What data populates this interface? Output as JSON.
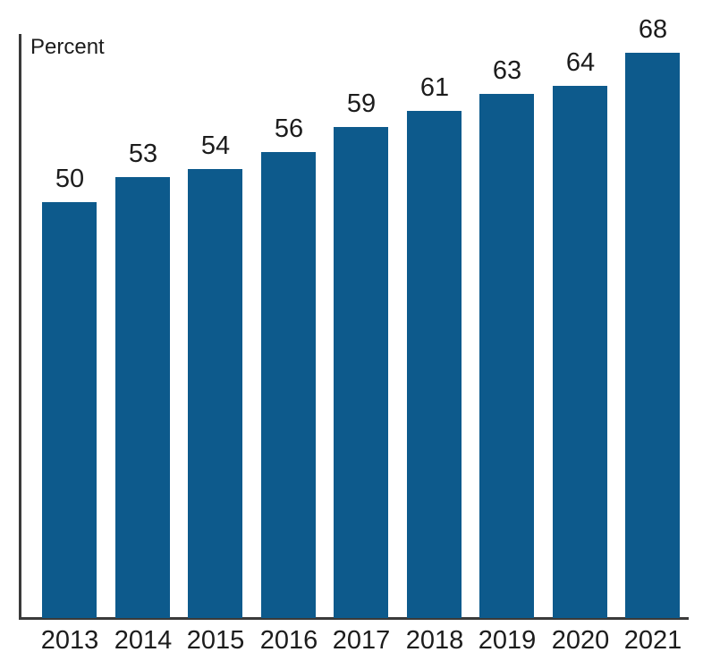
{
  "chart": {
    "unit_label": "Percent"
  },
  "chart_data": {
    "type": "bar",
    "title": "",
    "xlabel": "",
    "ylabel": "Percent",
    "categories": [
      "2013",
      "2014",
      "2015",
      "2016",
      "2017",
      "2018",
      "2019",
      "2020",
      "2021"
    ],
    "values": [
      50,
      53,
      54,
      56,
      59,
      61,
      63,
      64,
      68
    ],
    "data_labels_shown": true,
    "ylim": [
      0,
      70
    ],
    "grid": false,
    "legend": false,
    "bar_color": "#0d5a8c",
    "axis_color": "#3a3a3a",
    "text_color": "#1c1c1c"
  }
}
